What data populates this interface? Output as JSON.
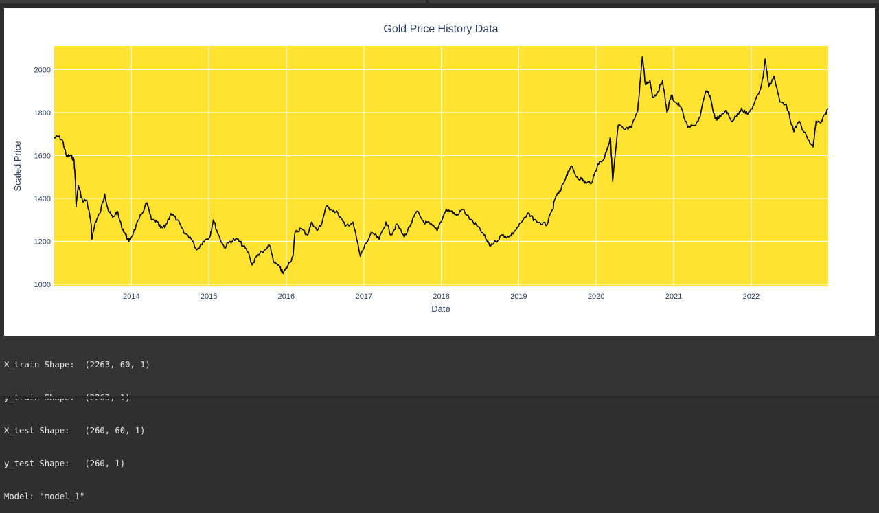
{
  "chart_data": {
    "type": "line",
    "title": "Gold Price History Data",
    "xlabel": "Date",
    "ylabel": "Scaled Price",
    "x_ticks": [
      "2014",
      "2015",
      "2016",
      "2017",
      "2018",
      "2019",
      "2020",
      "2021",
      "2022"
    ],
    "y_ticks": [
      1000,
      1200,
      1400,
      1600,
      1800,
      2000
    ],
    "xlim": [
      "2013-01-02",
      "2022-12-30"
    ],
    "ylim": [
      990,
      2110
    ],
    "grid": true,
    "plot_background": "#FFE330",
    "line_color": "#000000",
    "series": [
      {
        "x": [
          "2013-01-02",
          "2013-01-20",
          "2013-02-10",
          "2013-03-01",
          "2013-03-20",
          "2013-04-05",
          "2013-04-12",
          "2013-04-15",
          "2013-04-25",
          "2013-05-15",
          "2013-06-05",
          "2013-06-25",
          "2013-06-28",
          "2013-07-15",
          "2013-08-05",
          "2013-08-28",
          "2013-09-15",
          "2013-10-05",
          "2013-10-25",
          "2013-11-15",
          "2013-12-05",
          "2013-12-20",
          "2014-01-10",
          "2014-02-05",
          "2014-03-14",
          "2014-04-05",
          "2014-05-01",
          "2014-05-20",
          "2014-06-10",
          "2014-07-05",
          "2014-08-05",
          "2014-09-05",
          "2014-10-05",
          "2014-11-05",
          "2014-12-05",
          "2015-01-05",
          "2015-01-22",
          "2015-02-15",
          "2015-03-15",
          "2015-04-10",
          "2015-05-15",
          "2015-06-10",
          "2015-07-05",
          "2015-07-24",
          "2015-08-20",
          "2015-09-15",
          "2015-10-15",
          "2015-11-05",
          "2015-12-01",
          "2015-12-17",
          "2016-01-10",
          "2016-02-01",
          "2016-02-11",
          "2016-03-10",
          "2016-04-10",
          "2016-05-01",
          "2016-05-25",
          "2016-06-15",
          "2016-07-06",
          "2016-08-01",
          "2016-09-01",
          "2016-10-05",
          "2016-11-10",
          "2016-12-15",
          "2017-01-10",
          "2017-02-10",
          "2017-03-14",
          "2017-04-15",
          "2017-05-09",
          "2017-06-06",
          "2017-07-10",
          "2017-08-10",
          "2017-09-08",
          "2017-10-10",
          "2017-11-10",
          "2017-12-12",
          "2018-01-25",
          "2018-02-15",
          "2018-03-15",
          "2018-04-11",
          "2018-05-20",
          "2018-06-20",
          "2018-07-20",
          "2018-08-16",
          "2018-09-15",
          "2018-10-15",
          "2018-11-15",
          "2018-12-15",
          "2019-01-15",
          "2019-02-20",
          "2019-03-15",
          "2019-04-23",
          "2019-05-15",
          "2019-06-10",
          "2019-06-25",
          "2019-07-15",
          "2019-08-15",
          "2019-09-04",
          "2019-10-01",
          "2019-10-25",
          "2019-11-15",
          "2019-12-15",
          "2020-01-08",
          "2020-02-05",
          "2020-02-24",
          "2020-03-09",
          "2020-03-19",
          "2020-04-14",
          "2020-05-15",
          "2020-06-15",
          "2020-07-15",
          "2020-07-27",
          "2020-08-06",
          "2020-08-20",
          "2020-09-10",
          "2020-09-25",
          "2020-10-20",
          "2020-11-09",
          "2020-11-30",
          "2020-12-20",
          "2021-01-06",
          "2021-02-01",
          "2021-03-08",
          "2021-04-10",
          "2021-05-05",
          "2021-06-01",
          "2021-06-20",
          "2021-07-15",
          "2021-08-09",
          "2021-09-03",
          "2021-09-29",
          "2021-10-20",
          "2021-11-16",
          "2021-12-15",
          "2022-01-15",
          "2022-02-10",
          "2022-02-25",
          "2022-03-08",
          "2022-03-25",
          "2022-04-18",
          "2022-05-16",
          "2022-06-15",
          "2022-07-21",
          "2022-08-15",
          "2022-09-27",
          "2022-10-20",
          "2022-11-03",
          "2022-11-25",
          "2022-12-15",
          "2022-12-30"
        ],
        "y": [
          1680,
          1690,
          1670,
          1595,
          1600,
          1580,
          1480,
          1360,
          1460,
          1390,
          1390,
          1280,
          1210,
          1290,
          1330,
          1420,
          1340,
          1310,
          1340,
          1270,
          1230,
          1200,
          1240,
          1300,
          1380,
          1300,
          1290,
          1260,
          1270,
          1330,
          1300,
          1240,
          1220,
          1160,
          1200,
          1220,
          1300,
          1230,
          1170,
          1200,
          1210,
          1180,
          1150,
          1090,
          1140,
          1150,
          1180,
          1100,
          1080,
          1050,
          1090,
          1130,
          1240,
          1260,
          1230,
          1290,
          1250,
          1280,
          1360,
          1350,
          1330,
          1270,
          1290,
          1130,
          1190,
          1240,
          1210,
          1290,
          1230,
          1280,
          1220,
          1280,
          1340,
          1290,
          1280,
          1250,
          1350,
          1340,
          1320,
          1350,
          1300,
          1270,
          1230,
          1180,
          1200,
          1230,
          1220,
          1250,
          1290,
          1330,
          1300,
          1280,
          1280,
          1350,
          1410,
          1430,
          1510,
          1550,
          1500,
          1490,
          1470,
          1480,
          1560,
          1580,
          1640,
          1680,
          1480,
          1740,
          1720,
          1730,
          1810,
          1950,
          2060,
          1930,
          1950,
          1870,
          1900,
          1950,
          1800,
          1880,
          1850,
          1830,
          1730,
          1740,
          1780,
          1900,
          1880,
          1770,
          1780,
          1810,
          1760,
          1780,
          1820,
          1790,
          1840,
          1900,
          1960,
          2050,
          1920,
          1970,
          1850,
          1840,
          1710,
          1760,
          1670,
          1640,
          1760,
          1750,
          1790,
          1820
        ]
      }
    ]
  },
  "output": {
    "lines": [
      "X_train Shape:  (2263, 60, 1)",
      "y_train Shape:  (2263, 1)",
      "X_test Shape:   (260, 60, 1)",
      "y_test Shape:   (260, 1)",
      "Model: \"model_1\""
    ]
  }
}
